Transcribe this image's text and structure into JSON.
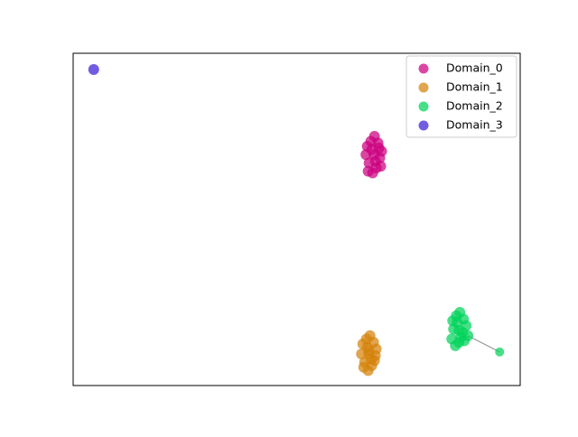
{
  "chart_data": {
    "type": "scatter",
    "xlim": [
      0,
      10
    ],
    "ylim": [
      0,
      10
    ],
    "legend": "upper right",
    "series": [
      {
        "name": "Domain_0",
        "color": "#cc0080",
        "x": [
          6.55,
          6.62,
          6.7,
          6.78,
          6.86,
          6.9,
          6.58,
          6.66,
          6.74,
          6.82,
          6.88,
          6.6,
          6.68,
          6.76,
          6.84,
          6.73
        ],
        "values": [
          6.95,
          6.7,
          6.4,
          6.55,
          6.85,
          7.05,
          7.2,
          7.35,
          7.5,
          7.3,
          6.6,
          6.45,
          7.1,
          6.75,
          7.15,
          6.95
        ]
      },
      {
        "name": "Domain_1",
        "color": "#d4820a",
        "x": [
          6.45,
          6.52,
          6.6,
          6.68,
          6.76,
          6.78,
          6.48,
          6.56,
          6.64,
          6.72,
          6.5,
          6.58,
          6.66,
          6.74,
          6.62,
          6.61
        ],
        "values": [
          0.95,
          0.7,
          0.45,
          0.6,
          0.9,
          1.1,
          1.25,
          1.4,
          1.5,
          1.3,
          0.55,
          1.15,
          0.8,
          0.75,
          1.05,
          0.95
        ]
      },
      {
        "name": "Domain_2",
        "color": "#00d25a",
        "x": [
          8.83,
          8.47,
          8.55,
          8.63,
          8.71,
          8.79,
          8.49,
          8.57,
          8.65,
          8.73,
          8.51,
          8.59,
          8.67,
          8.75,
          8.63,
          9.54
        ],
        "values": [
          1.5,
          1.4,
          1.2,
          1.3,
          1.6,
          1.8,
          1.95,
          2.1,
          2.2,
          2.0,
          1.7,
          1.9,
          1.45,
          1.35,
          1.66,
          1.01
        ]
      },
      {
        "name": "Domain_3",
        "color": "#3a1fd6",
        "x": [
          0.46
        ],
        "values": [
          9.51
        ]
      }
    ]
  }
}
